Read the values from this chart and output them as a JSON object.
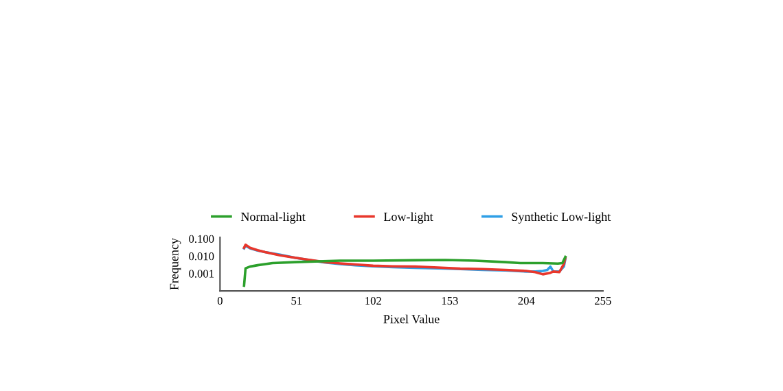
{
  "chart_data": {
    "type": "line",
    "xlabel": "Pixel Value",
    "ylabel": "Frequency",
    "log": "y",
    "xlim": [
      0,
      255
    ],
    "xticks": [
      0,
      51,
      102,
      153,
      204,
      255
    ],
    "ylim": [
      0.0001,
      0.12
    ],
    "yticks": [
      0.001,
      {
        "value": 0.01,
        "label": "0.010"
      },
      {
        "value": 0.1,
        "label": "0.100"
      }
    ],
    "grid": false,
    "legend": "top",
    "line_style": "solid",
    "marker": "none",
    "series": [
      {
        "name": "Normal-light",
        "color": "#2ca02c",
        "x": [
          16,
          17,
          20,
          25,
          35,
          50,
          80,
          102,
          130,
          150,
          170,
          190,
          200,
          215,
          225,
          228,
          230
        ],
        "values": [
          0.0002,
          0.002,
          0.0025,
          0.003,
          0.004,
          0.0045,
          0.0055,
          0.0055,
          0.0058,
          0.006,
          0.0055,
          0.0045,
          0.004,
          0.004,
          0.0037,
          0.004,
          0.009
        ]
      },
      {
        "name": "Low-light",
        "color": "#e8372c",
        "x": [
          16,
          17,
          20,
          25,
          30,
          40,
          50,
          60,
          70,
          80,
          90,
          102,
          115,
          130,
          145,
          160,
          175,
          190,
          204,
          210,
          215,
          220,
          222,
          226,
          229,
          230
        ],
        "values": [
          0.03,
          0.045,
          0.03,
          0.022,
          0.017,
          0.011,
          0.008,
          0.006,
          0.0045,
          0.0038,
          0.0033,
          0.0028,
          0.0026,
          0.0025,
          0.0022,
          0.0019,
          0.0018,
          0.0016,
          0.0014,
          0.0012,
          0.0009,
          0.0011,
          0.0013,
          0.0012,
          0.0035,
          0.008
        ]
      },
      {
        "name": "Synthetic Low-light",
        "color": "#2f9fe6",
        "x": [
          16,
          17,
          20,
          25,
          30,
          40,
          50,
          60,
          70,
          80,
          90,
          102,
          115,
          130,
          145,
          160,
          175,
          190,
          204,
          210,
          215,
          218,
          220,
          222,
          226,
          229,
          230
        ],
        "values": [
          0.028,
          0.04,
          0.028,
          0.021,
          0.017,
          0.012,
          0.008,
          0.0058,
          0.0043,
          0.0035,
          0.003,
          0.0026,
          0.0023,
          0.0021,
          0.002,
          0.0018,
          0.0016,
          0.0015,
          0.0013,
          0.0013,
          0.0014,
          0.0016,
          0.0025,
          0.0013,
          0.0013,
          0.0025,
          0.007
        ]
      }
    ]
  }
}
